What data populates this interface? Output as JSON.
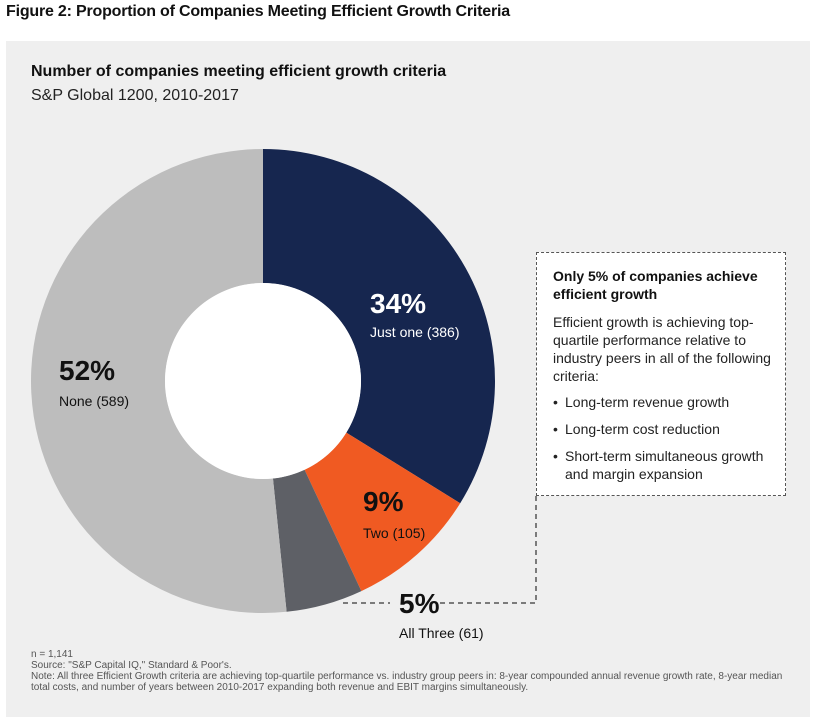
{
  "figure_title": "Figure 2: Proportion of Companies Meeting Efficient Growth Criteria",
  "chart_data": {
    "type": "pie",
    "title": "Number of companies meeting efficient growth criteria",
    "subtitle": "S&P Global 1200, 2010-2017",
    "donut": true,
    "slices": [
      {
        "name": "Just one",
        "count": 386,
        "percent": 34,
        "pct_label": "34%",
        "label": "Just one (386)",
        "color": "#16264f"
      },
      {
        "name": "Two",
        "count": 105,
        "percent": 9,
        "pct_label": "9%",
        "label": "Two (105)",
        "color": "#f05a22"
      },
      {
        "name": "All Three",
        "count": 61,
        "percent": 5,
        "pct_label": "5%",
        "label": "All Three (61)",
        "color": "#5e6066"
      },
      {
        "name": "None",
        "count": 589,
        "percent": 52,
        "pct_label": "52%",
        "label": "None (589)",
        "color": "#bdbdbd"
      }
    ]
  },
  "callout": {
    "heading": "Only 5% of companies achieve efficient growth",
    "body": "Efficient growth is achieving top-quartile performance relative to industry peers in all of the following criteria:",
    "bullets": [
      "Long-term revenue growth",
      "Long-term cost reduction",
      "Short-term simultaneous growth and margin expansion"
    ]
  },
  "footnotes": {
    "n": "n = 1,141",
    "source": "Source: \"S&P Capital IQ,\" Standard & Poor's.",
    "note": "Note: All three Efficient Growth criteria are achieving top-quartile performance vs. industry group peers in: 8-year compounded annual revenue growth rate, 8-year median total costs, and number of years between 2010-2017 expanding both revenue and EBIT margins simultaneously."
  }
}
